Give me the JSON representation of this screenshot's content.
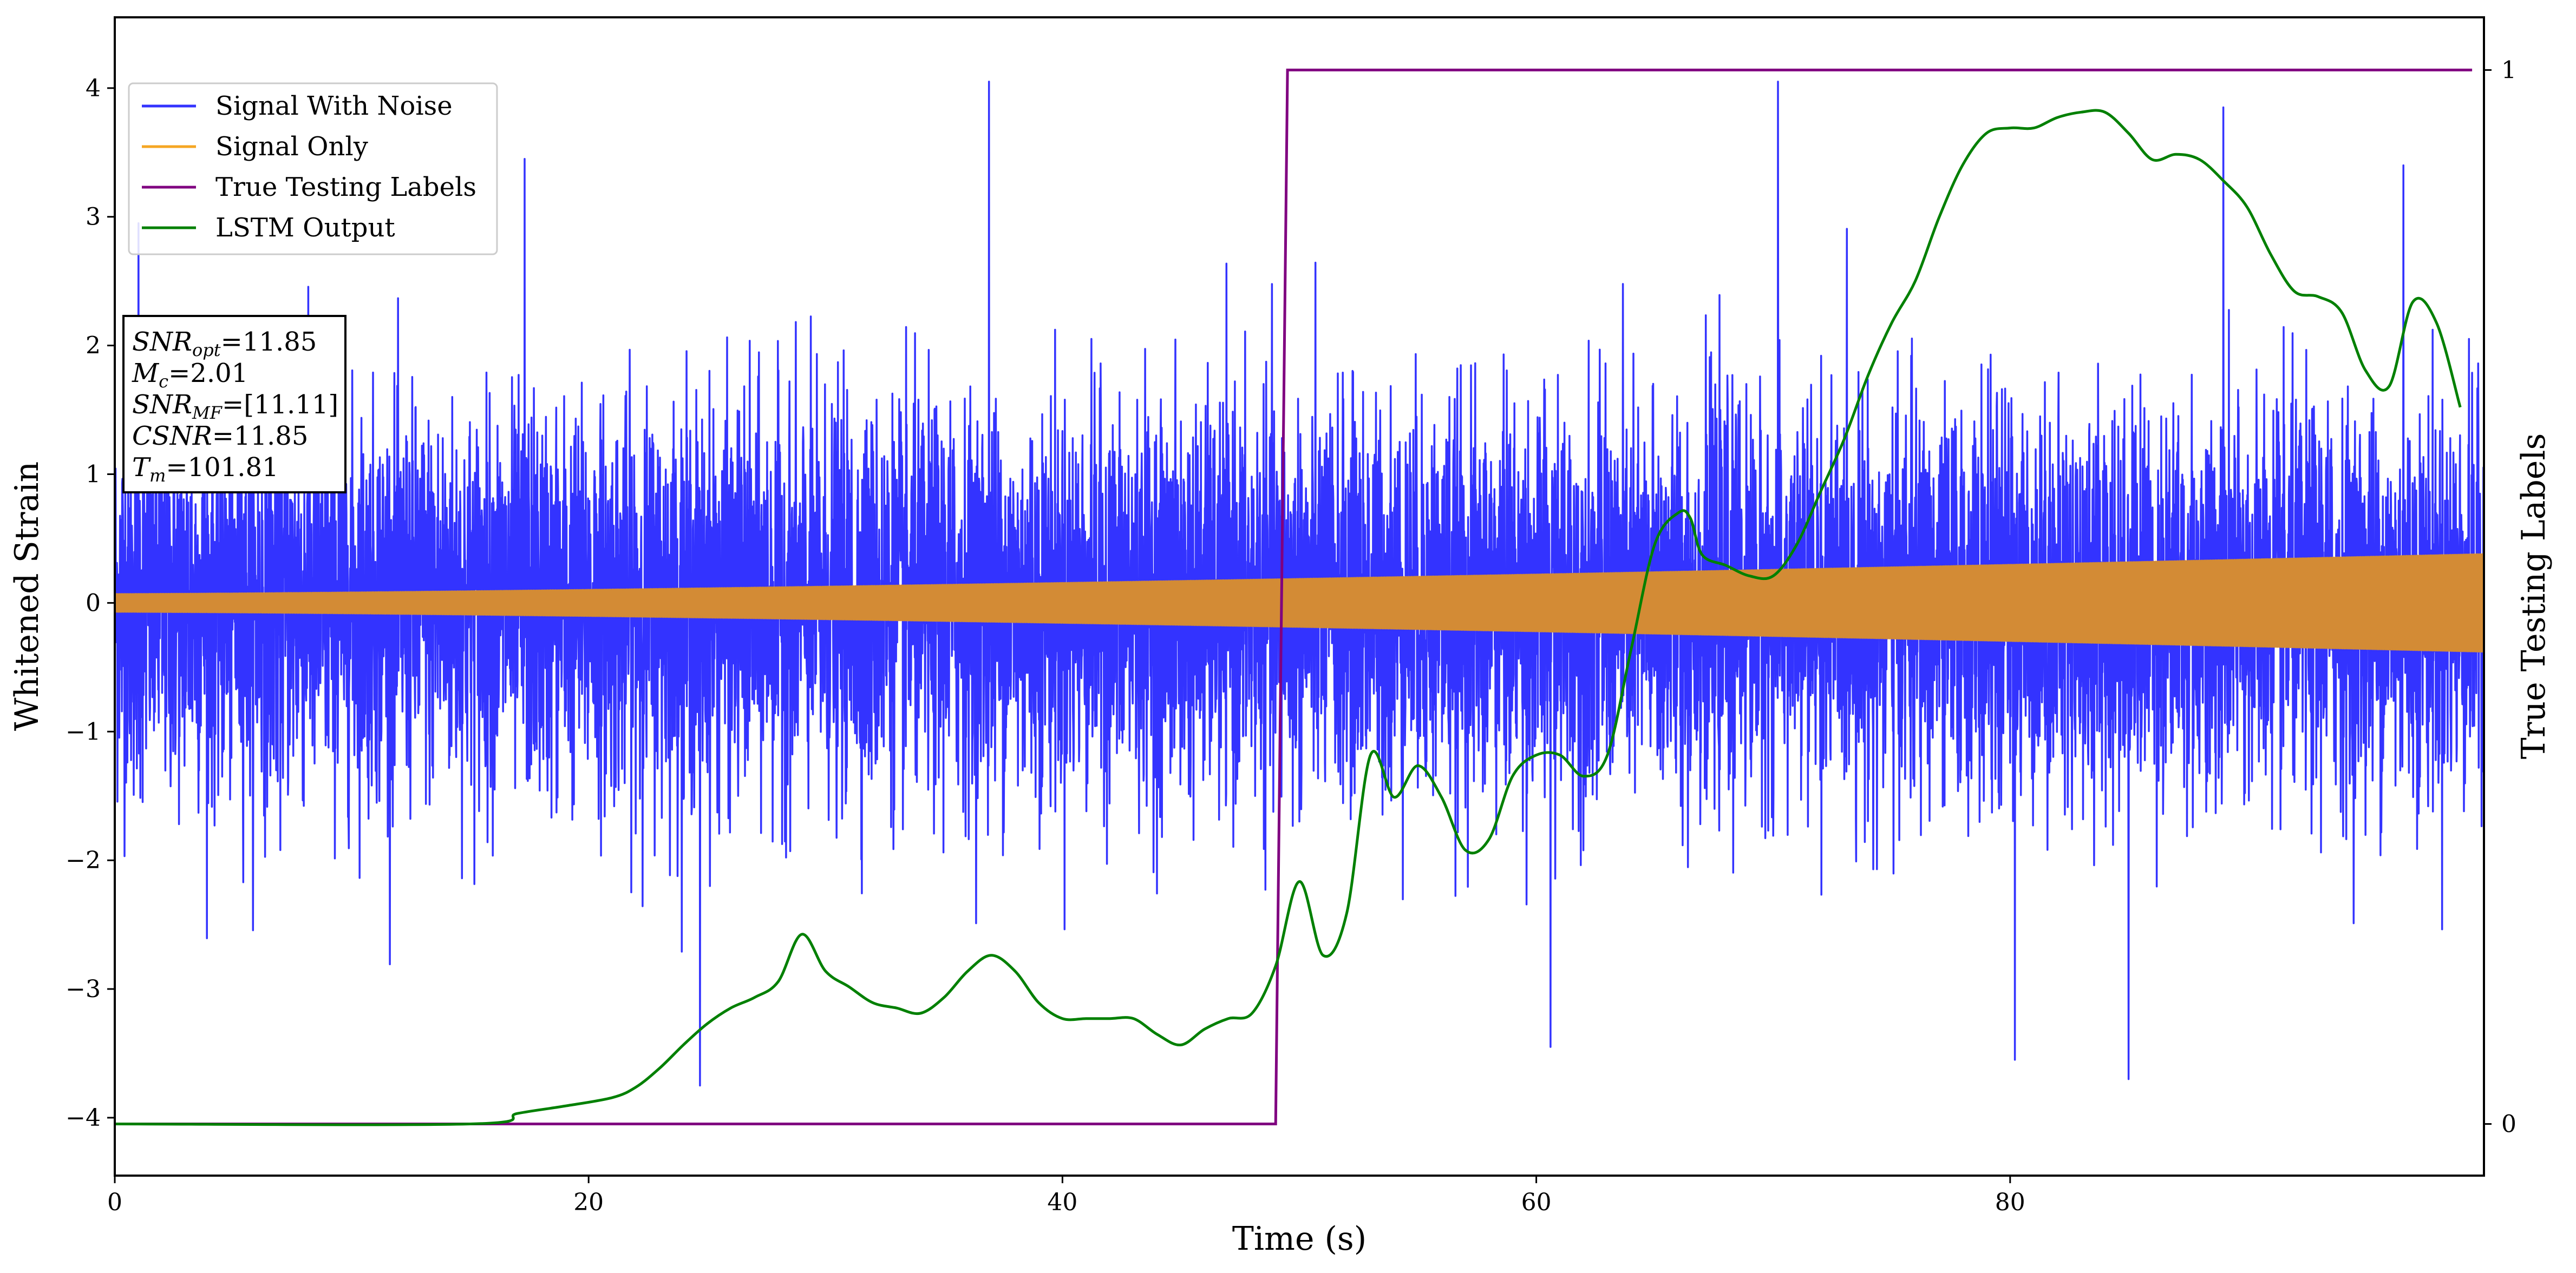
{
  "chart_data": {
    "type": "line",
    "xlabel": "Time (s)",
    "ylabel": "Whitened Strain",
    "y2label": "True Testing Labels",
    "xlim": [
      0,
      100
    ],
    "ylim": [
      -4.45,
      4.55
    ],
    "y2lim": [
      -0.049,
      1.05
    ],
    "xticks": [
      "0",
      "20",
      "40",
      "60",
      "80"
    ],
    "yticks": [
      "−4",
      "−3",
      "−2",
      "−1",
      "0",
      "1",
      "2",
      "3",
      "4"
    ],
    "y2ticks": [
      "0",
      "1"
    ],
    "legend_position": "upper-left",
    "grid": false,
    "series": [
      {
        "name": "Signal With Noise",
        "color": "#3333ff",
        "axis": "left",
        "description_values": {
          "band_min": -2.5,
          "band_max": 2.7,
          "peak_max": 4.05,
          "peak_min": -3.75
        },
        "notable_peaks": [
          [
            1.0,
            2.95
          ],
          [
            17.3,
            3.45
          ],
          [
            24.7,
            -3.75
          ],
          [
            36.9,
            4.05
          ],
          [
            60.6,
            -3.45
          ],
          [
            70.2,
            4.05
          ],
          [
            80.2,
            -3.55
          ],
          [
            85.0,
            -3.7
          ],
          [
            89.0,
            3.85
          ],
          [
            96.6,
            3.4
          ]
        ]
      },
      {
        "name": "Signal Only",
        "color": "#f5a623",
        "axis": "left",
        "amplitude_start": 0.07,
        "amplitude_end": 0.38
      },
      {
        "name": "True Testing Labels",
        "color": "#800080",
        "axis": "right",
        "x": [
          0,
          49.0,
          49.5,
          99.5
        ],
        "y": [
          0,
          0,
          1,
          1
        ]
      },
      {
        "name": "LSTM Output",
        "color": "#008000",
        "axis": "right",
        "x": [
          0,
          15,
          17,
          19,
          21,
          22,
          23,
          24,
          25,
          26,
          27,
          28,
          29,
          30,
          31,
          32,
          33,
          34,
          35,
          36,
          37,
          38,
          39,
          40,
          41,
          42,
          43,
          44,
          45,
          46,
          47,
          48,
          49,
          50,
          51,
          52,
          53,
          54,
          55,
          56,
          57,
          58,
          59,
          60,
          61,
          62,
          63,
          64,
          65,
          66,
          66.5,
          67,
          68,
          69,
          70,
          71,
          72,
          73,
          74,
          75,
          76,
          77,
          78,
          79,
          80,
          81,
          82,
          83,
          84,
          85,
          86,
          87,
          88,
          89,
          90,
          91,
          92,
          93,
          94,
          95,
          96,
          97,
          98,
          99
        ],
        "y": [
          0,
          0,
          0.01,
          0.017,
          0.025,
          0.035,
          0.053,
          0.075,
          0.095,
          0.11,
          0.12,
          0.135,
          0.18,
          0.145,
          0.13,
          0.115,
          0.11,
          0.105,
          0.12,
          0.145,
          0.16,
          0.145,
          0.115,
          0.1,
          0.1,
          0.1,
          0.1,
          0.085,
          0.075,
          0.09,
          0.1,
          0.105,
          0.15,
          0.23,
          0.16,
          0.2,
          0.35,
          0.31,
          0.34,
          0.31,
          0.26,
          0.27,
          0.33,
          0.35,
          0.35,
          0.33,
          0.35,
          0.45,
          0.55,
          0.58,
          0.575,
          0.54,
          0.53,
          0.52,
          0.52,
          0.55,
          0.6,
          0.65,
          0.71,
          0.76,
          0.8,
          0.86,
          0.91,
          0.94,
          0.945,
          0.945,
          0.955,
          0.96,
          0.96,
          0.94,
          0.915,
          0.92,
          0.915,
          0.895,
          0.87,
          0.825,
          0.79,
          0.785,
          0.77,
          0.715,
          0.7,
          0.78,
          0.76,
          0.68
        ]
      }
    ]
  },
  "info_box": {
    "lines": [
      {
        "main": "SNR",
        "sub": "opt",
        "value": "=11.85"
      },
      {
        "main": "M",
        "sub": "c",
        "value": "=2.01"
      },
      {
        "main": "SNR",
        "sub": "MF",
        "value": "=[11.11]"
      },
      {
        "main": "CSNR",
        "sub": "",
        "value": "=11.85"
      },
      {
        "main": "T",
        "sub": "m",
        "value": "=101.81"
      }
    ]
  }
}
